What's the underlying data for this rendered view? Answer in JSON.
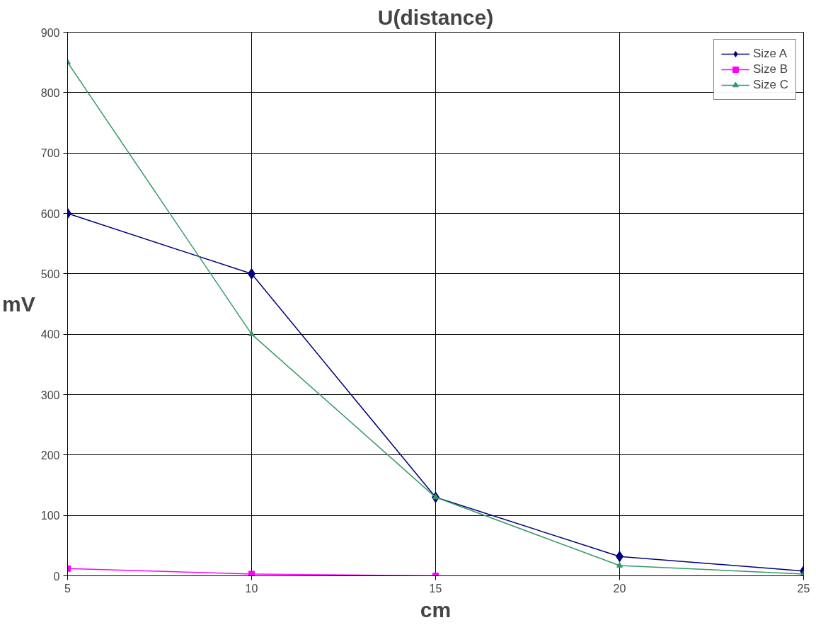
{
  "chart_data": {
    "type": "line",
    "title": "U(distance)",
    "xlabel": "cm",
    "ylabel": "mV",
    "x": [
      5,
      10,
      15,
      20,
      25
    ],
    "series": [
      {
        "name": "Size A",
        "color": "#000080",
        "marker": "diamond",
        "values": [
          600,
          500,
          130,
          32,
          8
        ]
      },
      {
        "name": "Size B",
        "color": "#ff00ff",
        "marker": "square",
        "values": [
          12,
          3,
          0,
          null,
          null
        ]
      },
      {
        "name": "Size C",
        "color": "#339966",
        "marker": "triangle",
        "values": [
          850,
          400,
          130,
          17,
          3
        ]
      }
    ],
    "xlim": [
      5,
      25
    ],
    "xticks": [
      5,
      10,
      15,
      20,
      25
    ],
    "ylim": [
      0,
      900
    ],
    "yticks": [
      0,
      100,
      200,
      300,
      400,
      500,
      600,
      700,
      800,
      900
    ],
    "grid": true,
    "legend": "top right",
    "line_style": "solid"
  }
}
